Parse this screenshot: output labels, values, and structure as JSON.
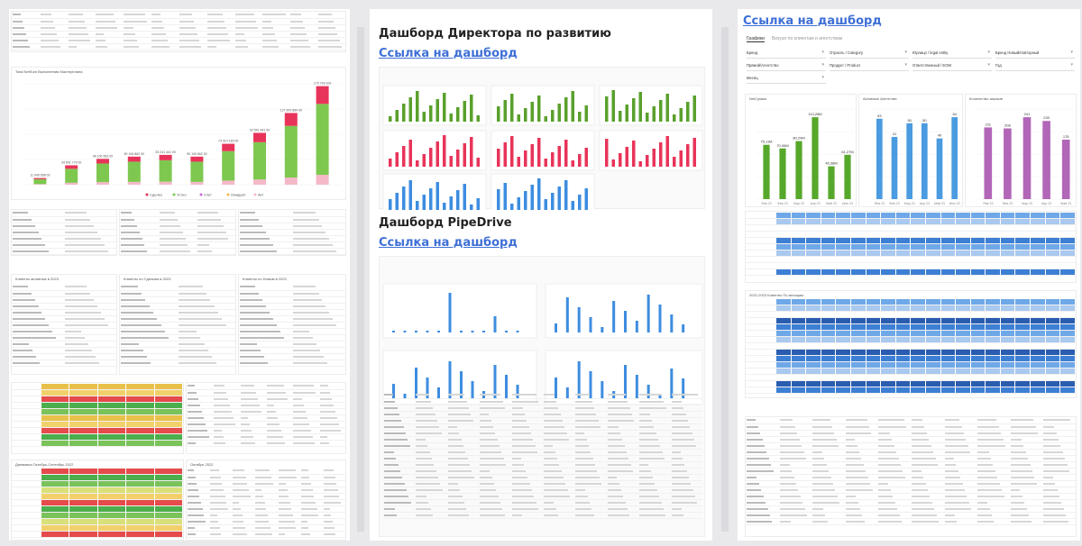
{
  "col2": {
    "title1": "Дашборд Директора по развитию",
    "link1": "Ссылка на дашборд",
    "title2": "Дашборд PipeDrive",
    "link2": "Ссылка на дашборд"
  },
  "col3": {
    "link": "Ссылка на дашборд",
    "tabs": [
      "Графики",
      "Визуал по клиентам и агентствам"
    ],
    "filters": [
      "Бренд",
      "Отрасль / Category",
      "Юрлицо / legal entity",
      "Бренд Новый/повторный",
      "Прямой/Агентство",
      "Продукт / Product",
      "Ответственный / EOM",
      "Год",
      "Месяц"
    ],
    "charts": {
      "netsum": {
        "title": "NetСумма",
        "values": [
          "75,11M",
          "70,06M",
          "80,29M",
          "113,28M",
          "45,38M",
          "61,27M"
        ]
      },
      "agencies": {
        "title": "Активные Агентства",
        "values": [
          "53",
          "41",
          "50",
          "50",
          "40",
          "54"
        ]
      },
      "orders": {
        "title": "Количество заказов",
        "values": [
          "211",
          "208",
          "241",
          "230",
          "175"
        ]
      }
    },
    "table_title": "2022-2023 Клиенты По месяцам"
  },
  "col1": {
    "chart_title": "Total NetSum Выполнения Мастерплана",
    "legend": [
      "Сделка",
      "Устно",
      "Счет",
      "Ожидает",
      "Акт"
    ],
    "bar_labels": [
      "11 945 658 00",
      "34 641 779 00",
      "46 100 553 00",
      "50 106 862 00",
      "53 241 441 00",
      "50 106 862 00",
      "73 014 183 00",
      "92 541 441 00",
      "127 900 884 00",
      "175 793 100"
    ],
    "section_a": "Клиенты активные в 2023",
    "section_b": "Клиенты по Сделкам в 2023",
    "section_c": "Клиенты по Новым в 2023",
    "section_d": "Динамика Октябрь 2022",
    "section_e": "Октябрь 2022",
    "section_f": "Динамика Октябрь-Сентябрь 2022"
  },
  "chart_data": [
    {
      "type": "bar",
      "title": "Total NetSum Выполнения Мастерплана",
      "categories": [
        "1",
        "2",
        "3",
        "4",
        "5",
        "6",
        "7",
        "8",
        "9",
        "10"
      ],
      "series": [
        {
          "name": "Сделка",
          "values": [
            11.9,
            34.6,
            46.1,
            50.1,
            53.2,
            50.1,
            73.0,
            92.5,
            127.9,
            175.8
          ]
        }
      ]
    },
    {
      "type": "bar",
      "title": "NetСумма",
      "categories": [
        "Янв 23",
        "Фев 23",
        "Мар 23",
        "Апр 23",
        "Май 23",
        "Июн 23"
      ],
      "values": [
        75.11,
        70.06,
        80.29,
        113.28,
        45.38,
        61.27
      ]
    },
    {
      "type": "bar",
      "title": "Активные Агентства",
      "categories": [
        "Янв 23",
        "Фев 23",
        "Мар 23",
        "Апр 23",
        "Май 23",
        "Июн 23"
      ],
      "values": [
        53,
        41,
        50,
        50,
        40,
        54
      ]
    },
    {
      "type": "bar",
      "title": "Количество заказов",
      "categories": [
        "Янв 23",
        "Фев 23",
        "Мар 23",
        "Апр 23",
        "Май 23"
      ],
      "values": [
        211,
        208,
        241,
        230,
        175
      ]
    }
  ]
}
